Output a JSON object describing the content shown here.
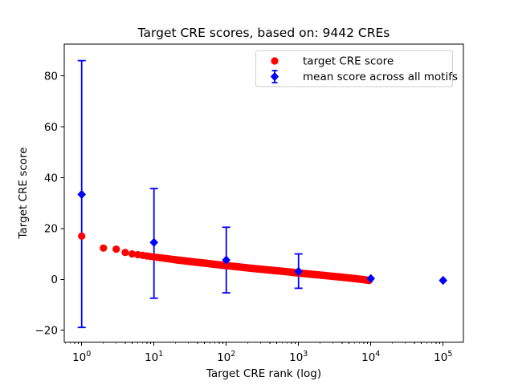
{
  "chart_data": {
    "type": "scatter",
    "title": "Target CRE scores, based on: 9442 CREs",
    "x_axis": {
      "label": "Target CRE rank (log)",
      "scale": "log",
      "tick_base": "10",
      "tick_exponents": [
        0,
        1,
        2,
        3,
        4,
        5
      ],
      "lim_log": [
        -0.2412,
        5.2806
      ],
      "minor_ticks": true
    },
    "y_axis": {
      "label": "Target CRE score",
      "ticks": [
        -20,
        0,
        20,
        40,
        60,
        80
      ],
      "lim": [
        -24.66,
        92.49
      ]
    },
    "legend": {
      "position": "upper right",
      "entries": [
        {
          "label": "target CRE score",
          "marker": "circle",
          "color": "#ff0000"
        },
        {
          "label": "mean score across all motifs",
          "marker": "diamond-errorbar",
          "color": "#0000ff"
        }
      ]
    },
    "series": [
      {
        "name": "target CRE score",
        "style": "dense scatter of one dot per rank, 1..9442",
        "marker": "circle",
        "color": "#ff0000",
        "n_points": 9442,
        "anchors": [
          [
            1,
            17.0
          ],
          [
            2,
            12.3
          ],
          [
            3,
            11.9
          ],
          [
            4,
            10.6
          ],
          [
            5,
            10.0
          ],
          [
            6,
            9.7
          ],
          [
            8,
            9.2
          ],
          [
            10,
            8.8
          ],
          [
            14,
            8.3
          ],
          [
            20,
            7.7
          ],
          [
            30,
            7.1
          ],
          [
            50,
            6.4
          ],
          [
            70,
            5.9
          ],
          [
            100,
            5.4
          ],
          [
            140,
            5.0
          ],
          [
            200,
            4.5
          ],
          [
            300,
            4.0
          ],
          [
            500,
            3.4
          ],
          [
            700,
            3.0
          ],
          [
            1000,
            2.5
          ],
          [
            1400,
            2.1
          ],
          [
            2000,
            1.7
          ],
          [
            3000,
            1.2
          ],
          [
            4500,
            0.7
          ],
          [
            6500,
            0.2
          ],
          [
            8000,
            -0.1
          ],
          [
            9442,
            -0.4
          ]
        ]
      },
      {
        "name": "mean score across all motifs",
        "marker": "diamond",
        "color": "#0000ff",
        "points": [
          {
            "rank": 1,
            "mean": 33.4,
            "lo": -18.9,
            "hi": 86.0
          },
          {
            "rank": 10,
            "mean": 14.5,
            "lo": -7.4,
            "hi": 35.7
          },
          {
            "rank": 100,
            "mean": 7.6,
            "lo": -5.3,
            "hi": 20.5
          },
          {
            "rank": 1000,
            "mean": 3.1,
            "lo": -3.5,
            "hi": 10.0
          },
          {
            "rank": 10000,
            "mean": 0.3,
            "lo": 0.3,
            "hi": 0.3
          },
          {
            "rank": 100000,
            "mean": -0.4,
            "lo": -0.4,
            "hi": -0.4
          }
        ]
      }
    ]
  }
}
